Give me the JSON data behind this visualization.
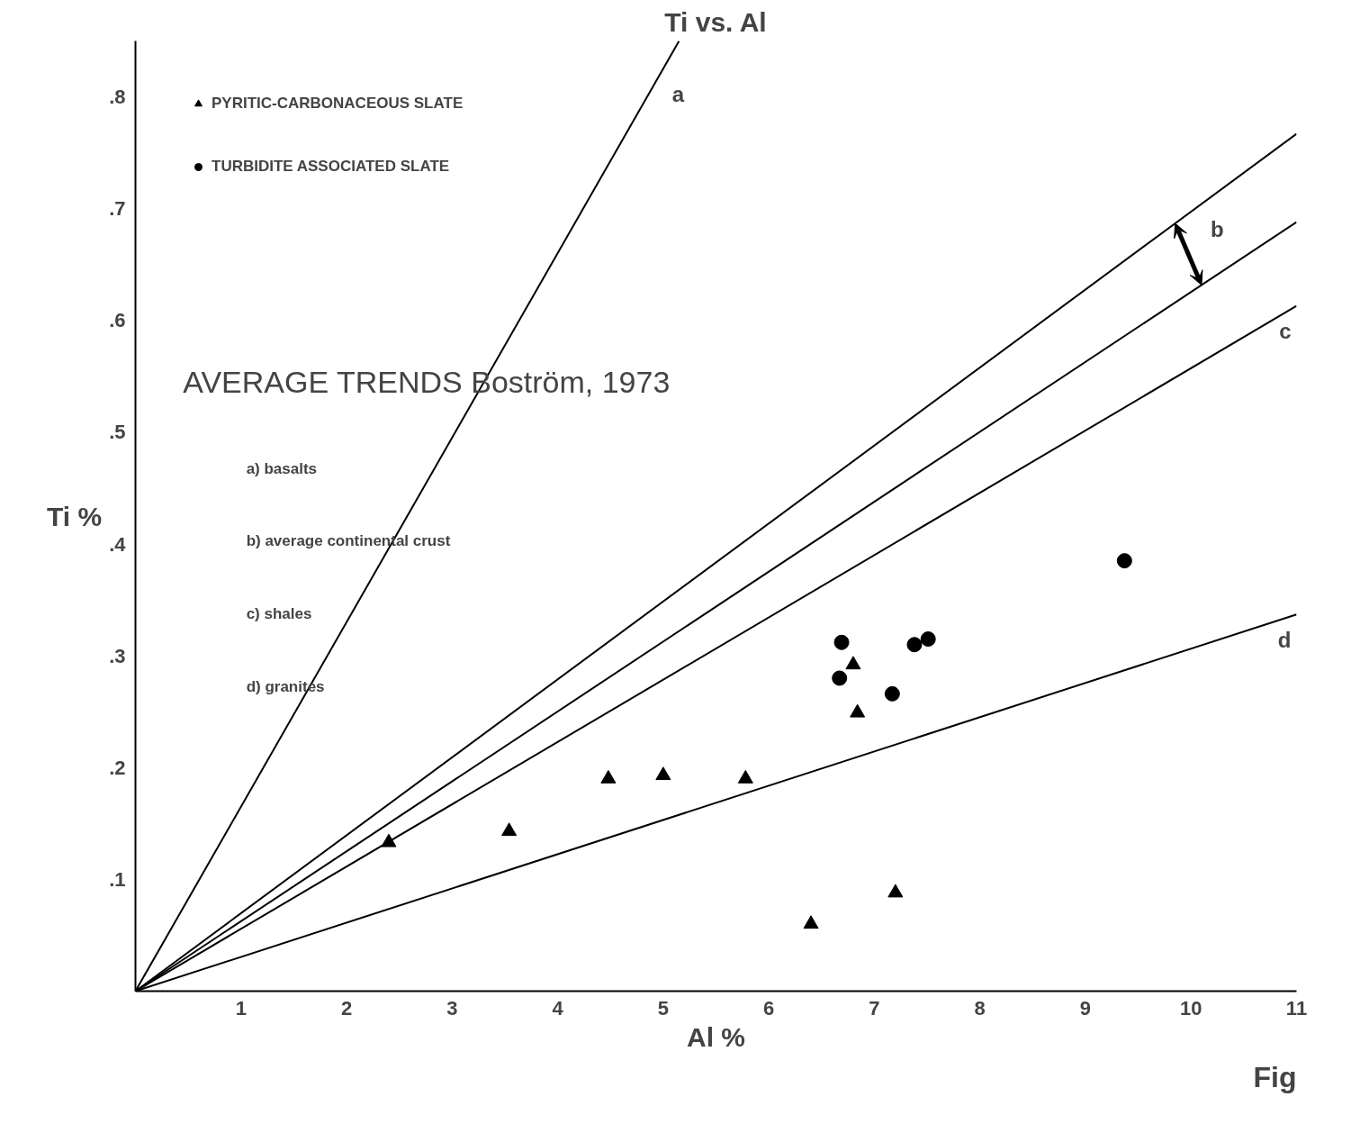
{
  "chart_data": {
    "type": "scatter",
    "title": "Ti vs. Al",
    "xlabel": "Al %",
    "ylabel": "Ti %",
    "xlim": [
      0,
      11
    ],
    "ylim": [
      0,
      0.85
    ],
    "xticks": [
      1,
      2,
      3,
      4,
      5,
      6,
      7,
      8,
      9,
      10,
      11
    ],
    "yticks": [
      {
        "value": 0.1,
        "label": ".1"
      },
      {
        "value": 0.2,
        "label": ".2"
      },
      {
        "value": 0.3,
        "label": ".3"
      },
      {
        "value": 0.4,
        "label": ".4"
      },
      {
        "value": 0.5,
        "label": ".5"
      },
      {
        "value": 0.6,
        "label": ".6"
      },
      {
        "value": 0.7,
        "label": ".7"
      },
      {
        "value": 0.8,
        "label": ".8"
      }
    ],
    "grid": false,
    "legend": "top left",
    "series": [
      {
        "name": "PYRITIC-CARBONACEOUS SLATE",
        "color": "#000000",
        "marker": "triangle",
        "x": [
          2.4,
          3.54,
          4.48,
          5.0,
          5.78,
          6.4,
          7.2,
          6.8,
          6.84
        ],
        "values": [
          0.133,
          0.143,
          0.19,
          0.193,
          0.19,
          0.06,
          0.088,
          0.292,
          0.249
        ]
      },
      {
        "name": "TURBIDITE ASSOCIATED SLATE",
        "color": "#000000",
        "marker": "circle",
        "x": [
          6.69,
          6.67,
          7.38,
          7.51,
          7.17,
          9.37
        ],
        "values": [
          0.312,
          0.28,
          0.31,
          0.315,
          0.266,
          0.385
        ]
      },
      {
        "type": "line",
        "color": "#000000",
        "x": [
          0,
          5.15
        ],
        "values": [
          0,
          0.85
        ]
      },
      {
        "type": "line",
        "color": "#000000",
        "x": [
          0,
          11
        ],
        "values": [
          0,
          0.767
        ]
      },
      {
        "type": "line",
        "color": "#000000",
        "x": [
          0,
          11
        ],
        "values": [
          0,
          0.688
        ]
      },
      {
        "type": "line",
        "color": "#000000",
        "x": [
          0,
          11
        ],
        "values": [
          0,
          0.613
        ]
      },
      {
        "type": "line",
        "color": "#000000",
        "x": [
          0,
          11
        ],
        "values": [
          0,
          0.337
        ]
      }
    ],
    "annotations": [
      {
        "text": "a",
        "x": 5.0,
        "y": 0.825
      },
      {
        "text": "b",
        "x": 10.1,
        "y": 0.704
      },
      {
        "text": "c",
        "x": 11,
        "y": 0.613
      },
      {
        "text": "d",
        "x": 11,
        "y": 0.337
      },
      "AVERAGE TRENDS  Boström, 1973",
      "a) basalts",
      "b) average continental crust",
      "c) shales",
      "d) granites",
      "Fig"
    ]
  }
}
